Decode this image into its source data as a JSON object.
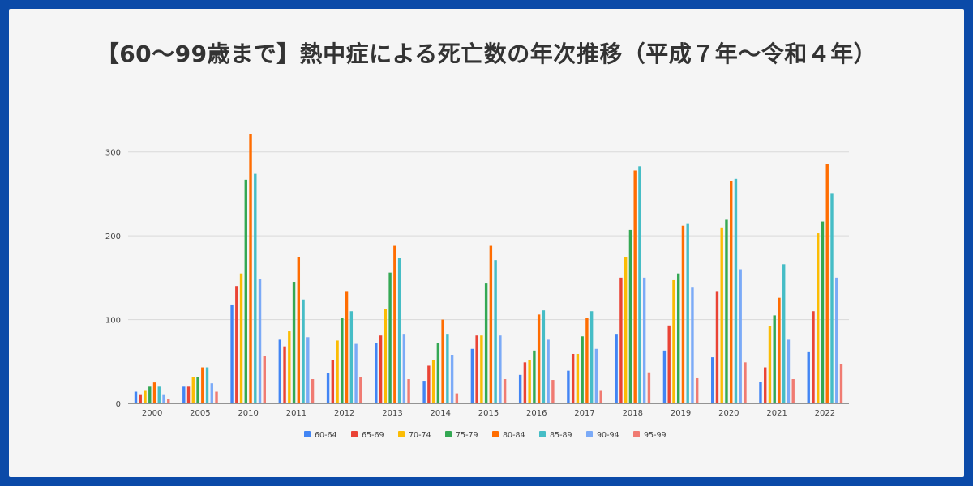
{
  "title": "【60〜99歳まで】熱中症による死亡数の年次推移（平成７年〜令和４年）",
  "chart_data": {
    "type": "bar",
    "title": "【60〜99歳まで】熱中症による死亡数の年次推移（平成７年〜令和４年）",
    "xlabel": "",
    "ylabel": "",
    "ylim": [
      0,
      350
    ],
    "yticks": [
      "0",
      "100",
      "200",
      "300"
    ],
    "grid": true,
    "legend_position": "bottom",
    "categories": [
      "2000",
      "2005",
      "2010",
      "2011",
      "2012",
      "2013",
      "2014",
      "2015",
      "2016",
      "2017",
      "2018",
      "2019",
      "2020",
      "2021",
      "2022"
    ],
    "series": [
      {
        "name": "60-64",
        "color": "#4285f4",
        "values": [
          14,
          20,
          118,
          76,
          36,
          72,
          27,
          65,
          34,
          39,
          83,
          63,
          55,
          26,
          62
        ]
      },
      {
        "name": "65-69",
        "color": "#ea4335",
        "values": [
          10,
          20,
          140,
          68,
          52,
          81,
          45,
          81,
          49,
          59,
          150,
          93,
          134,
          43,
          110
        ]
      },
      {
        "name": "70-74",
        "color": "#fbbc04",
        "values": [
          15,
          31,
          155,
          86,
          75,
          113,
          52,
          81,
          52,
          59,
          175,
          147,
          210,
          92,
          203
        ]
      },
      {
        "name": "75-79",
        "color": "#34a853",
        "values": [
          20,
          31,
          267,
          145,
          102,
          156,
          72,
          143,
          63,
          80,
          207,
          155,
          220,
          105,
          217
        ]
      },
      {
        "name": "80-84",
        "color": "#ff6d01",
        "values": [
          25,
          43,
          321,
          175,
          134,
          188,
          100,
          188,
          106,
          102,
          278,
          212,
          265,
          126,
          286
        ]
      },
      {
        "name": "85-89",
        "color": "#46bdc6",
        "values": [
          20,
          43,
          274,
          124,
          110,
          174,
          83,
          171,
          111,
          110,
          283,
          215,
          268,
          166,
          251
        ]
      },
      {
        "name": "90-94",
        "color": "#7baaf7",
        "values": [
          10,
          24,
          148,
          79,
          71,
          83,
          58,
          81,
          76,
          65,
          150,
          139,
          160,
          76,
          150
        ]
      },
      {
        "name": "95-99",
        "color": "#f07b72",
        "values": [
          5,
          14,
          57,
          29,
          31,
          29,
          12,
          29,
          28,
          15,
          37,
          30,
          49,
          29,
          47
        ]
      }
    ]
  }
}
